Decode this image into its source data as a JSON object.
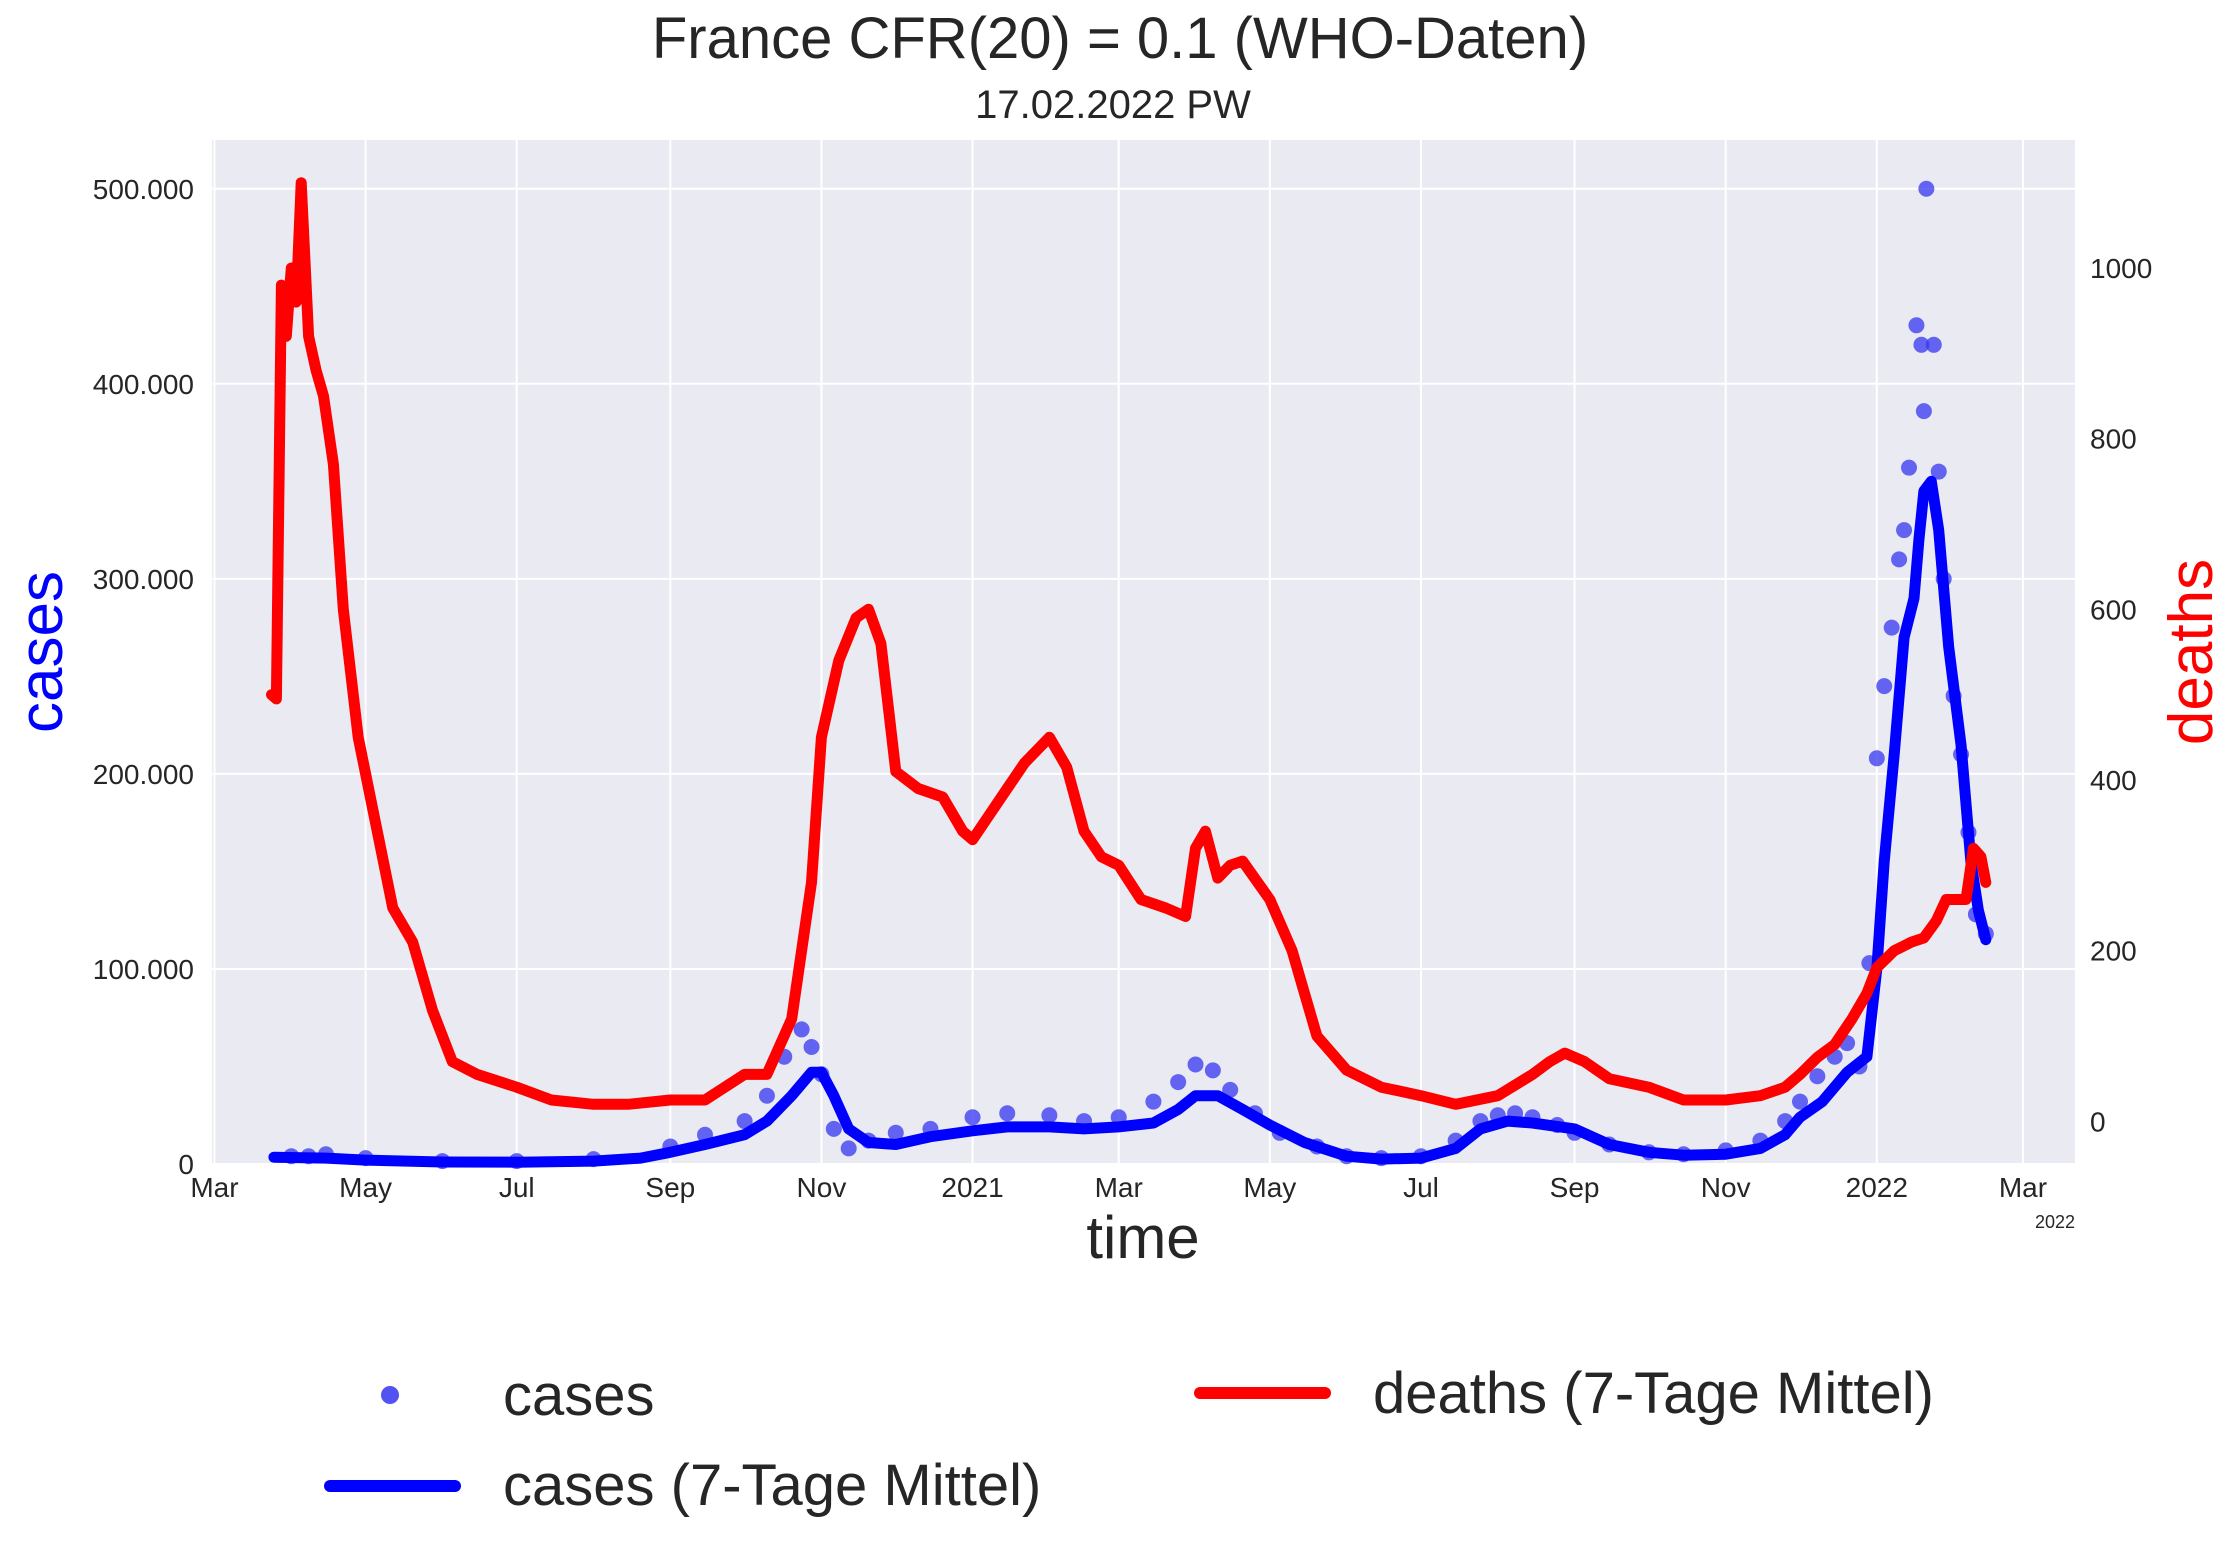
{
  "chart_data": {
    "type": "line",
    "title": "France CFR(20) = 0.1  (WHO-Daten)",
    "subtitle": "17.02.2022 PW",
    "xlabel": "time",
    "ylabel": "cases",
    "y2label": "deaths",
    "x_ticks": [
      "Mar",
      "May",
      "Jul",
      "Sep",
      "Nov",
      "2021",
      "Mar",
      "May",
      "Jul",
      "Sep",
      "Nov",
      "2022",
      "Mar"
    ],
    "x_tick_dates": [
      "2020-03-01",
      "2020-05-01",
      "2020-07-01",
      "2020-09-01",
      "2020-11-01",
      "2021-01-01",
      "2021-03-01",
      "2021-05-01",
      "2021-07-01",
      "2021-09-01",
      "2021-11-01",
      "2022-01-01",
      "2022-03-01"
    ],
    "x_offset_label": "2022",
    "xlim": [
      "2020-02-29",
      "2022-03-22"
    ],
    "ylim": [
      0,
      525000
    ],
    "y_ticks": [
      0,
      100000,
      200000,
      300000,
      400000,
      500000
    ],
    "y_tick_labels": [
      "0",
      "100.000",
      "200.000",
      "300.000",
      "400.000",
      "500.000"
    ],
    "y2lim": [
      -50,
      1150
    ],
    "y2_ticks": [
      0,
      200,
      400,
      600,
      800,
      1000
    ],
    "y2_tick_labels": [
      "0",
      "200",
      "400",
      "600",
      "800",
      "1000"
    ],
    "grid": true,
    "legend_placement": "bottom, outside",
    "series": [
      {
        "name": "cases",
        "kind": "scatter",
        "axis": "left",
        "color": "#3535f0",
        "x": [
          "2020-04-01",
          "2020-04-08",
          "2020-04-15",
          "2020-05-01",
          "2020-06-01",
          "2020-07-01",
          "2020-08-01",
          "2020-09-01",
          "2020-09-15",
          "2020-10-01",
          "2020-10-10",
          "2020-10-17",
          "2020-10-24",
          "2020-10-28",
          "2020-11-01",
          "2020-11-06",
          "2020-11-12",
          "2020-11-20",
          "2020-12-01",
          "2020-12-15",
          "2021-01-01",
          "2021-01-15",
          "2021-02-01",
          "2021-02-15",
          "2021-03-01",
          "2021-03-15",
          "2021-03-25",
          "2021-04-01",
          "2021-04-08",
          "2021-04-15",
          "2021-04-25",
          "2021-05-05",
          "2021-05-20",
          "2021-06-01",
          "2021-06-15",
          "2021-07-01",
          "2021-07-15",
          "2021-07-25",
          "2021-08-01",
          "2021-08-08",
          "2021-08-15",
          "2021-08-25",
          "2021-09-01",
          "2021-09-15",
          "2021-10-01",
          "2021-10-15",
          "2021-11-01",
          "2021-11-15",
          "2021-11-25",
          "2021-12-01",
          "2021-12-08",
          "2021-12-15",
          "2021-12-20",
          "2021-12-25",
          "2021-12-29",
          "2022-01-01",
          "2022-01-04",
          "2022-01-07",
          "2022-01-10",
          "2022-01-12",
          "2022-01-14",
          "2022-01-17",
          "2022-01-19",
          "2022-01-20",
          "2022-01-21",
          "2022-01-24",
          "2022-01-26",
          "2022-01-28",
          "2022-02-01",
          "2022-02-04",
          "2022-02-07",
          "2022-02-10",
          "2022-02-14"
        ],
        "values": [
          4000,
          4000,
          5000,
          3000,
          1500,
          1500,
          2500,
          9000,
          15000,
          22000,
          35000,
          55000,
          69000,
          60000,
          46000,
          18000,
          8000,
          12000,
          16000,
          18000,
          24000,
          26000,
          25000,
          22000,
          24000,
          32000,
          42000,
          51000,
          48000,
          38000,
          26000,
          16000,
          9000,
          4000,
          3000,
          4000,
          12000,
          22000,
          25000,
          26000,
          24000,
          20000,
          16000,
          10000,
          6000,
          5000,
          7000,
          12000,
          22000,
          32000,
          45000,
          55000,
          62000,
          50000,
          103000,
          208000,
          245000,
          275000,
          310000,
          325000,
          357000,
          430000,
          420000,
          386000,
          500000,
          420000,
          355000,
          300000,
          240000,
          210000,
          170000,
          128000,
          118000
        ]
      },
      {
        "name": "cases (7-Tage Mittel)",
        "kind": "line",
        "axis": "left",
        "color": "#0000ff",
        "x": [
          "2020-03-25",
          "2020-04-15",
          "2020-05-01",
          "2020-06-01",
          "2020-07-01",
          "2020-08-01",
          "2020-08-20",
          "2020-09-01",
          "2020-09-15",
          "2020-10-01",
          "2020-10-10",
          "2020-10-20",
          "2020-10-28",
          "2020-11-01",
          "2020-11-06",
          "2020-11-12",
          "2020-11-20",
          "2020-12-01",
          "2020-12-15",
          "2021-01-01",
          "2021-01-15",
          "2021-02-01",
          "2021-02-15",
          "2021-03-01",
          "2021-03-15",
          "2021-03-25",
          "2021-04-01",
          "2021-04-10",
          "2021-04-20",
          "2021-05-01",
          "2021-05-15",
          "2021-06-01",
          "2021-06-15",
          "2021-07-01",
          "2021-07-15",
          "2021-07-25",
          "2021-08-05",
          "2021-08-15",
          "2021-09-01",
          "2021-09-15",
          "2021-10-01",
          "2021-10-15",
          "2021-11-01",
          "2021-11-15",
          "2021-11-25",
          "2021-12-01",
          "2021-12-10",
          "2021-12-20",
          "2021-12-28",
          "2022-01-01",
          "2022-01-04",
          "2022-01-08",
          "2022-01-12",
          "2022-01-16",
          "2022-01-18",
          "2022-01-20",
          "2022-01-23",
          "2022-01-26",
          "2022-01-30",
          "2022-02-04",
          "2022-02-08",
          "2022-02-11",
          "2022-02-14"
        ],
        "values": [
          3500,
          3000,
          2000,
          1000,
          900,
          1500,
          3000,
          6000,
          10000,
          15000,
          22000,
          35000,
          47000,
          47000,
          35000,
          18000,
          11000,
          10000,
          14000,
          17000,
          19000,
          19000,
          18000,
          19000,
          21000,
          28000,
          35000,
          35000,
          28000,
          20000,
          11000,
          4000,
          2500,
          3000,
          8000,
          18000,
          22000,
          21000,
          18000,
          10000,
          6000,
          4500,
          5000,
          8000,
          15000,
          24000,
          32000,
          47000,
          55000,
          100000,
          155000,
          210000,
          270000,
          290000,
          320000,
          345000,
          350000,
          325000,
          265000,
          215000,
          155000,
          130000,
          115000
        ]
      },
      {
        "name": "deaths (7-Tage Mittel)",
        "kind": "line",
        "axis": "right",
        "color": "#ff0000",
        "x": [
          "2020-03-24",
          "2020-03-26",
          "2020-03-28",
          "2020-03-30",
          "2020-04-01",
          "2020-04-03",
          "2020-04-05",
          "2020-04-08",
          "2020-04-11",
          "2020-04-14",
          "2020-04-18",
          "2020-04-22",
          "2020-04-28",
          "2020-05-05",
          "2020-05-12",
          "2020-05-20",
          "2020-05-28",
          "2020-06-05",
          "2020-06-15",
          "2020-07-01",
          "2020-07-15",
          "2020-08-01",
          "2020-08-15",
          "2020-09-01",
          "2020-09-15",
          "2020-10-01",
          "2020-10-10",
          "2020-10-20",
          "2020-10-28",
          "2020-11-01",
          "2020-11-08",
          "2020-11-15",
          "2020-11-20",
          "2020-11-25",
          "2020-12-01",
          "2020-12-10",
          "2020-12-20",
          "2020-12-28",
          "2021-01-01",
          "2021-01-08",
          "2021-01-15",
          "2021-01-22",
          "2021-02-01",
          "2021-02-08",
          "2021-02-15",
          "2021-02-22",
          "2021-03-01",
          "2021-03-10",
          "2021-03-20",
          "2021-03-28",
          "2021-04-01",
          "2021-04-05",
          "2021-04-10",
          "2021-04-15",
          "2021-04-20",
          "2021-05-01",
          "2021-05-10",
          "2021-05-20",
          "2021-06-01",
          "2021-06-15",
          "2021-07-01",
          "2021-07-15",
          "2021-08-01",
          "2021-08-15",
          "2021-08-22",
          "2021-08-28",
          "2021-09-05",
          "2021-09-15",
          "2021-10-01",
          "2021-10-15",
          "2021-11-01",
          "2021-11-15",
          "2021-11-25",
          "2021-12-01",
          "2021-12-08",
          "2021-12-15",
          "2021-12-22",
          "2021-12-28",
          "2022-01-01",
          "2022-01-08",
          "2022-01-15",
          "2022-01-20",
          "2022-01-25",
          "2022-01-29",
          "2022-02-02",
          "2022-02-06",
          "2022-02-09",
          "2022-02-12",
          "2022-02-14"
        ],
        "values": [
          500,
          495,
          980,
          920,
          1000,
          960,
          1100,
          920,
          880,
          850,
          770,
          600,
          450,
          350,
          250,
          210,
          130,
          70,
          55,
          40,
          25,
          20,
          20,
          25,
          25,
          55,
          55,
          120,
          280,
          450,
          540,
          590,
          600,
          560,
          410,
          390,
          380,
          340,
          330,
          360,
          390,
          420,
          450,
          415,
          340,
          310,
          300,
          260,
          250,
          240,
          320,
          340,
          285,
          300,
          305,
          260,
          200,
          100,
          60,
          40,
          30,
          20,
          30,
          55,
          70,
          80,
          70,
          50,
          40,
          25,
          25,
          30,
          40,
          55,
          75,
          90,
          120,
          150,
          180,
          200,
          210,
          215,
          235,
          260,
          260,
          260,
          320,
          310,
          280
        ]
      }
    ],
    "legend": [
      {
        "label": "cases",
        "kind": "marker",
        "color": "#3535f0"
      },
      {
        "label": "cases (7-Tage Mittel)",
        "kind": "line",
        "color": "#0000ff"
      },
      {
        "label": "deaths (7-Tage Mittel)",
        "kind": "line",
        "color": "#ff0000"
      }
    ],
    "colors": {
      "plot_background": "#eaeaf2",
      "grid": "#ffffff",
      "ylabel": "#0000ff",
      "y2label": "#ff0000",
      "text": "#262626"
    }
  }
}
